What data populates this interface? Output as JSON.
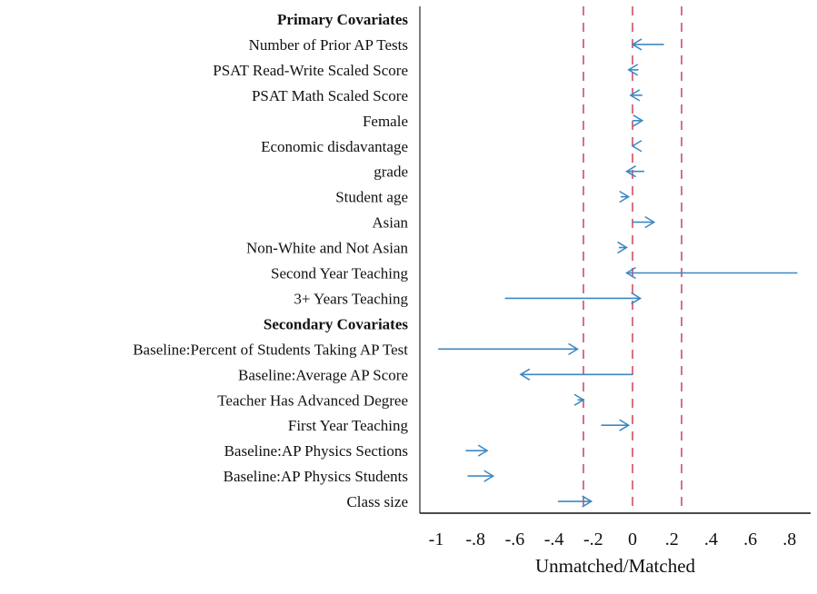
{
  "chart_data": {
    "type": "arrow-plot",
    "title": "",
    "xlabel": "Unmatched/Matched",
    "ylabel": "",
    "xlim": [
      -1.05,
      0.9
    ],
    "x_ticks": [
      -1,
      -0.8,
      -0.6,
      -0.4,
      -0.2,
      0,
      0.2,
      0.4,
      0.6,
      0.8
    ],
    "x_tick_labels": [
      "-1",
      "-.8",
      "-.6",
      "-.4",
      "-.2",
      "0",
      ".2",
      ".4",
      ".6",
      ".8"
    ],
    "reference_lines": [
      -0.25,
      0,
      0.25
    ],
    "grid": false,
    "arrow_direction": "unmatched -> matched",
    "colors": {
      "arrow": "#3b88c4",
      "reference_line": "#c8354d",
      "axis": "#111111"
    },
    "rows": [
      {
        "label": "Primary Covariates",
        "header": true
      },
      {
        "label": "Number of Prior AP Tests",
        "unmatched": 0.16,
        "matched": 0.0
      },
      {
        "label": "PSAT Read-Write Scaled Score",
        "unmatched": 0.03,
        "matched": -0.02
      },
      {
        "label": "PSAT Math Scaled Score",
        "unmatched": 0.05,
        "matched": -0.01
      },
      {
        "label": "Female",
        "unmatched": 0.0,
        "matched": 0.05
      },
      {
        "label": "Economic disdavantage",
        "unmatched": 0.01,
        "matched": 0.0
      },
      {
        "label": "grade",
        "unmatched": 0.06,
        "matched": -0.03
      },
      {
        "label": "Student age",
        "unmatched": -0.06,
        "matched": -0.02
      },
      {
        "label": "Asian",
        "unmatched": 0.0,
        "matched": 0.11
      },
      {
        "label": "Non-White and Not Asian",
        "unmatched": -0.07,
        "matched": -0.03
      },
      {
        "label": "Second Year Teaching",
        "unmatched": 0.84,
        "matched": -0.03
      },
      {
        "label": "3+ Years Teaching",
        "unmatched": -0.65,
        "matched": 0.04
      },
      {
        "label": "Secondary Covariates",
        "header": true
      },
      {
        "label": "Baseline:Percent of Students Taking AP Test",
        "unmatched": -0.99,
        "matched": -0.28
      },
      {
        "label": "Baseline:Average AP Score",
        "unmatched": 0.0,
        "matched": -0.57
      },
      {
        "label": "Teacher Has Advanced Degree",
        "unmatched": -0.28,
        "matched": -0.25
      },
      {
        "label": "First Year Teaching",
        "unmatched": -0.16,
        "matched": -0.02
      },
      {
        "label": "Baseline:AP Physics Sections",
        "unmatched": -0.85,
        "matched": -0.74
      },
      {
        "label": "Baseline:AP Physics Students",
        "unmatched": -0.84,
        "matched": -0.71
      },
      {
        "label": "Class size",
        "unmatched": -0.38,
        "matched": -0.21
      }
    ]
  }
}
